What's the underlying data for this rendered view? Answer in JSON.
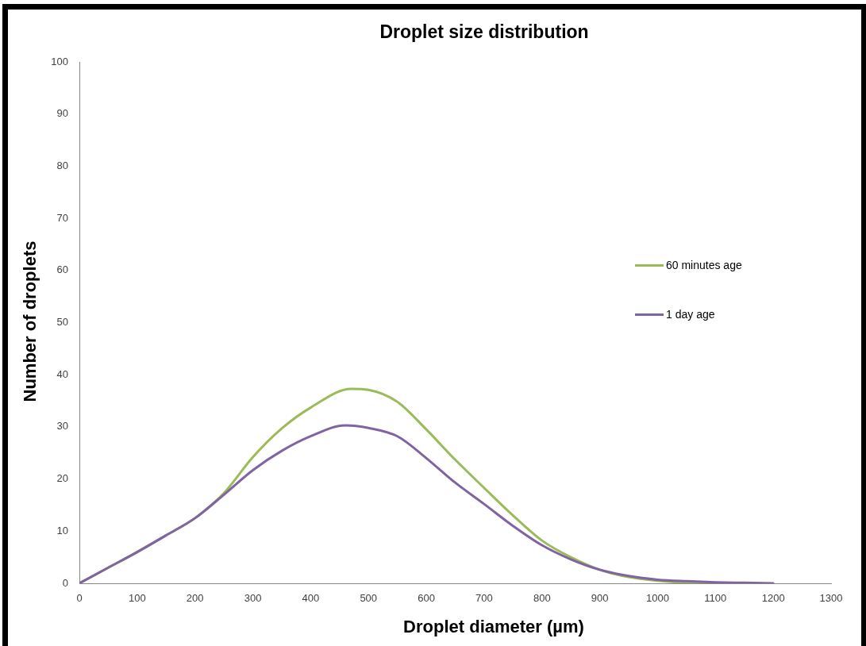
{
  "chart_data": {
    "type": "line",
    "title": "Droplet size distribution",
    "xlabel": "Droplet diameter (µm)",
    "ylabel": "Number of droplets",
    "series": [
      {
        "name": "60 minutes age",
        "color": "#9bbb59",
        "x": [
          0,
          50,
          100,
          150,
          200,
          250,
          300,
          350,
          400,
          470,
          500,
          550,
          600,
          650,
          700,
          750,
          800,
          850,
          900,
          950,
          1000,
          1050,
          1100
        ],
        "values": [
          0,
          3,
          6,
          9.2,
          12.5,
          17.3,
          24.2,
          29.7,
          33.7,
          37.3,
          37.1,
          34.8,
          29.5,
          23.7,
          18.3,
          13,
          8.2,
          5,
          2.6,
          1.2,
          0.5,
          0.1,
          0
        ]
      },
      {
        "name": "1 day age",
        "color": "#8064a2",
        "x": [
          0,
          50,
          100,
          150,
          200,
          250,
          300,
          350,
          400,
          460,
          500,
          550,
          600,
          650,
          700,
          750,
          800,
          850,
          900,
          950,
          1000,
          1050,
          1100,
          1150,
          1200
        ],
        "values": [
          0,
          3,
          6,
          9.2,
          12.5,
          17,
          21.7,
          25.4,
          28.2,
          30.3,
          29.8,
          28.2,
          24,
          19.3,
          15.2,
          11,
          7.3,
          4.6,
          2.6,
          1.4,
          0.7,
          0.4,
          0.2,
          0.1,
          0
        ]
      }
    ],
    "xlim": [
      0,
      1300
    ],
    "xticks": [
      0,
      100,
      200,
      300,
      400,
      500,
      600,
      700,
      800,
      900,
      1000,
      1100,
      1200,
      1300
    ],
    "ylim": [
      0,
      100
    ],
    "yticks": [
      0,
      10,
      20,
      30,
      40,
      50,
      60,
      70,
      80,
      90,
      100
    ],
    "legend": "right",
    "marker": "none"
  }
}
